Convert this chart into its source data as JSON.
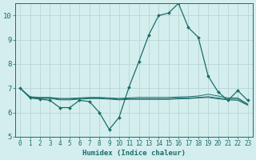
{
  "xlabel": "Humidex (Indice chaleur)",
  "background_color": "#d4eeee",
  "grid_color": "#b8d4d4",
  "line_color": "#1a6e6a",
  "xlim": [
    -0.5,
    23.5
  ],
  "ylim": [
    5,
    10.5
  ],
  "yticks": [
    5,
    6,
    7,
    8,
    9,
    10
  ],
  "xticks": [
    0,
    1,
    2,
    3,
    4,
    5,
    6,
    7,
    8,
    9,
    10,
    11,
    12,
    13,
    14,
    15,
    16,
    17,
    18,
    19,
    20,
    21,
    22,
    23
  ],
  "series_main": [
    7.0,
    6.6,
    6.55,
    6.5,
    6.2,
    6.2,
    6.5,
    6.45,
    6.0,
    5.3,
    5.8,
    7.05,
    8.1,
    9.2,
    10.0,
    10.1,
    10.5,
    9.5,
    9.1,
    7.5,
    6.85,
    6.5,
    6.9,
    6.5
  ],
  "series_flat": [
    [
      7.0,
      6.65,
      6.62,
      6.62,
      6.58,
      6.58,
      6.6,
      6.62,
      6.62,
      6.6,
      6.58,
      6.6,
      6.62,
      6.62,
      6.62,
      6.62,
      6.64,
      6.65,
      6.68,
      6.75,
      6.68,
      6.6,
      6.6,
      6.35
    ],
    [
      7.0,
      6.62,
      6.6,
      6.6,
      6.55,
      6.55,
      6.58,
      6.6,
      6.6,
      6.58,
      6.55,
      6.57,
      6.57,
      6.57,
      6.57,
      6.57,
      6.6,
      6.6,
      6.62,
      6.65,
      6.6,
      6.55,
      6.55,
      6.32
    ],
    [
      7.0,
      6.6,
      6.58,
      6.58,
      6.52,
      6.52,
      6.55,
      6.57,
      6.57,
      6.55,
      6.52,
      6.54,
      6.54,
      6.54,
      6.54,
      6.54,
      6.56,
      6.57,
      6.6,
      6.62,
      6.56,
      6.52,
      6.5,
      6.3
    ]
  ]
}
